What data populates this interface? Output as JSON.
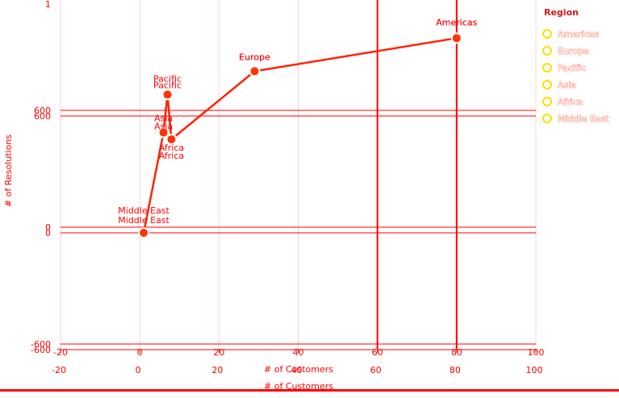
{
  "chart_data": {
    "type": "line",
    "xlabel": "# of Customers",
    "ylabel": "# of Resolutions",
    "xlim": [
      -20,
      100
    ],
    "ylim": [
      -600,
      1100
    ],
    "x_ticks": [
      "-20",
      "0",
      "20",
      "40",
      "60",
      "80",
      "100"
    ],
    "y_ticks": [
      "-600",
      "0",
      "600"
    ],
    "grid": true,
    "legend_title": "Region",
    "legend_position": "right",
    "series": [
      {
        "points": [
          {
            "label": "Middle East",
            "x": 1,
            "y": 0
          },
          {
            "label": "Asia",
            "x": 6,
            "y": 515
          },
          {
            "label": "Pacific",
            "x": 7,
            "y": 710
          },
          {
            "label": "Africa",
            "x": 8,
            "y": 480
          },
          {
            "label": "Europe",
            "x": 29,
            "y": 830
          },
          {
            "label": "Americas",
            "x": 80,
            "y": 1000
          }
        ]
      }
    ],
    "legend_items": [
      "Americas",
      "Europe",
      "Pacific",
      "Asia",
      "Africa",
      "Middle East"
    ],
    "colors": {
      "line": "#ff2200",
      "grid": "#ff0000",
      "marker_fill": "#ff3300",
      "legend_dot": "#ffdd00"
    }
  }
}
